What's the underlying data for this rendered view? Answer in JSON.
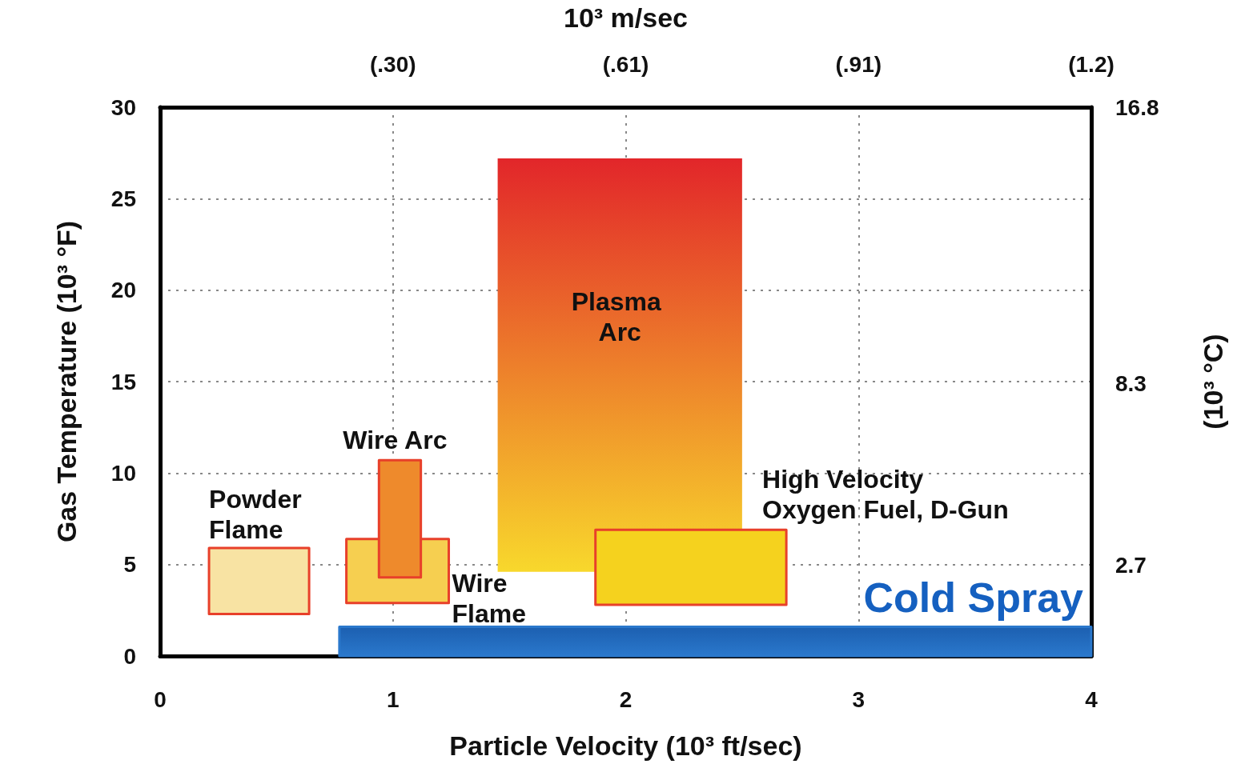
{
  "chart_data": {
    "type": "area",
    "xlabel": "Particle Velocity (10³ ft/sec)",
    "ylabel": "Gas Temperature (10³ °F)",
    "x2label": "10³ m/sec",
    "y2label": "(10³ °C)",
    "xlim": [
      0,
      4
    ],
    "xticks": [
      0,
      1,
      2,
      3,
      4
    ],
    "ylim": [
      0,
      30
    ],
    "yticks": [
      0,
      5,
      10,
      15,
      20,
      25,
      30
    ],
    "x2lim": [
      0,
      1.22
    ],
    "x2ticks": [
      {
        "value": 0.305,
        "label": "(.30)"
      },
      {
        "value": 0.61,
        "label": "(.61)"
      },
      {
        "value": 0.915,
        "label": "(.91)"
      },
      {
        "value": 1.22,
        "label": "(1.2)"
      }
    ],
    "y2lim": [
      -0.1,
      16.8
    ],
    "y2ticks": [
      2.7,
      8.3,
      16.8
    ],
    "grid": true,
    "legend": false,
    "series": [
      {
        "name": "Powder Flame",
        "color": "#f8e3a3",
        "x": [
          0.21,
          0.64,
          0.64,
          0.21,
          0.21
        ],
        "values": [
          2.3,
          2.3,
          5.9,
          5.9,
          2.3
        ]
      },
      {
        "name": "Wire Flame",
        "color": "#f6cf50",
        "x": [
          0.8,
          1.24,
          1.24,
          0.8,
          0.8
        ],
        "values": [
          2.9,
          2.9,
          6.4,
          6.4,
          2.9
        ]
      },
      {
        "name": "Wire Arc",
        "color": "#ee8a2c",
        "x": [
          0.94,
          1.12,
          1.12,
          0.94,
          0.94
        ],
        "values": [
          4.3,
          4.3,
          10.7,
          10.7,
          4.3
        ]
      },
      {
        "name": "Plasma Arc",
        "color": "#e2262a",
        "x": [
          1.45,
          1.87,
          1.87,
          2.5,
          2.5,
          1.45,
          1.45
        ],
        "values": [
          4.6,
          4.6,
          6.9,
          6.9,
          27.2,
          27.2,
          4.6
        ]
      },
      {
        "name": "High Velocity Oxygen Fuel, D-Gun",
        "color": "#f5d21e",
        "x": [
          1.87,
          2.69,
          2.69,
          1.87,
          1.87
        ],
        "values": [
          2.8,
          2.8,
          6.9,
          6.9,
          2.8
        ]
      },
      {
        "name": "Cold Spray",
        "color": "#2a78cc",
        "x": [
          0.77,
          4,
          4,
          0.77,
          0.77
        ],
        "values": [
          0,
          0,
          1.6,
          1.6,
          0
        ]
      }
    ]
  }
}
